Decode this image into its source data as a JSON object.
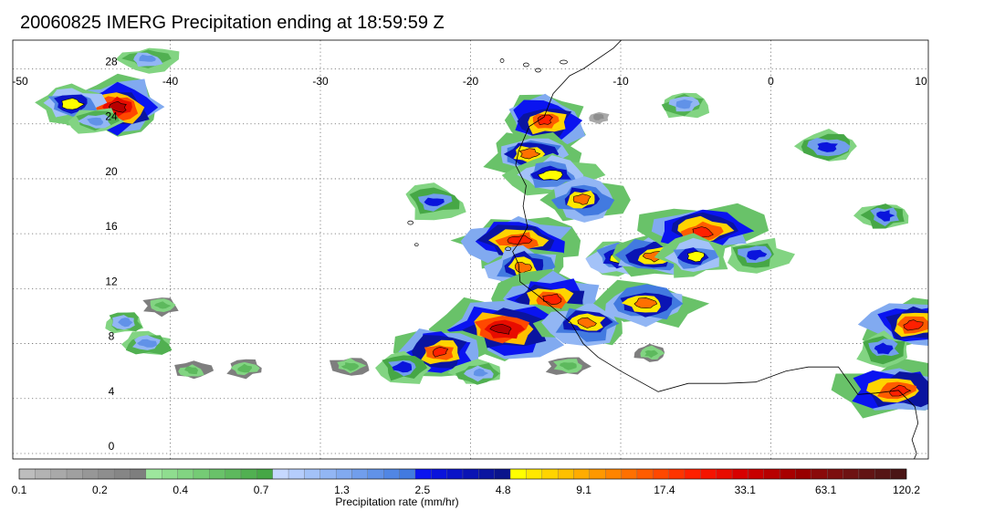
{
  "title": "20060825 IMERG Precipitation ending at 18:59:59 Z",
  "map": {
    "lon_range": [
      -50,
      10
    ],
    "lat_range": [
      -0.5,
      29
    ],
    "lon_ticks": [
      "-50",
      "-40",
      "-30",
      "-20",
      "-10",
      "0",
      "10"
    ],
    "lat_ticks": [
      "28",
      "24",
      "20",
      "16",
      "12",
      "8",
      "4",
      "0"
    ],
    "grid": "dotted",
    "coastline_color": "#000000"
  },
  "colorbar": {
    "title": "Precipitation rate (mm/hr)",
    "tick_labels": [
      "0.1",
      "0.2",
      "0.4",
      "0.7",
      "1.3",
      "2.5",
      "4.8",
      "9.1",
      "17.4",
      "33.1",
      "63.1",
      "120.2"
    ],
    "colors": [
      "#bdbdbd",
      "#b3b3b3",
      "#a9a9a9",
      "#a0a0a0",
      "#979797",
      "#8e8e8e",
      "#868686",
      "#7e7e7e",
      "#9de79d",
      "#8fdd8f",
      "#82d482",
      "#75cb75",
      "#69c269",
      "#5db95d",
      "#51b051",
      "#46a746",
      "#c6d8ff",
      "#b5cdfc",
      "#a3c2f8",
      "#92b6f4",
      "#81aaf0",
      "#719eec",
      "#6192e8",
      "#5186e4",
      "#427ae0",
      "#0a14f0",
      "#0a14dc",
      "#0a14c8",
      "#0a14b4",
      "#0a14a0",
      "#0a148c",
      "#ffff00",
      "#ffe800",
      "#ffd400",
      "#ffc000",
      "#ffac00",
      "#ff9800",
      "#ff8400",
      "#ff7000",
      "#ff5c00",
      "#ff4800",
      "#ff3400",
      "#ff2000",
      "#f51400",
      "#e80c00",
      "#d80000",
      "#c80000",
      "#b80000",
      "#a80000",
      "#980000",
      "#8a0a0a",
      "#7c0f0f",
      "#6e1212",
      "#621414",
      "#561515",
      "#4a1515"
    ]
  },
  "precip_clusters": [
    {
      "lon": -43.5,
      "lat": 25.2,
      "level": 7
    },
    {
      "lon": -46.5,
      "lat": 25.5,
      "level": 4
    },
    {
      "lon": -41.5,
      "lat": 28.7,
      "level": 2
    },
    {
      "lon": -15.1,
      "lat": 24.2,
      "level": 6
    },
    {
      "lon": -16.0,
      "lat": 21.8,
      "level": 5
    },
    {
      "lon": -14.6,
      "lat": 20.3,
      "level": 4
    },
    {
      "lon": -12.5,
      "lat": 18.5,
      "level": 5
    },
    {
      "lon": -22.5,
      "lat": 18.3,
      "level": 3
    },
    {
      "lon": -16.8,
      "lat": 15.5,
      "level": 6
    },
    {
      "lon": -16.5,
      "lat": 13.6,
      "level": 5
    },
    {
      "lon": -14.6,
      "lat": 11.2,
      "level": 6
    },
    {
      "lon": -17.8,
      "lat": 9.0,
      "level": 7
    },
    {
      "lon": -22.0,
      "lat": 7.4,
      "level": 6
    },
    {
      "lon": -12.2,
      "lat": 9.5,
      "level": 5
    },
    {
      "lon": -8.3,
      "lat": 10.9,
      "level": 5
    },
    {
      "lon": -10.2,
      "lat": 14.2,
      "level": 4
    },
    {
      "lon": -7.8,
      "lat": 14.4,
      "level": 5
    },
    {
      "lon": -4.6,
      "lat": 16.2,
      "level": 6
    },
    {
      "lon": -5.1,
      "lat": 14.3,
      "level": 4
    },
    {
      "lon": -1.0,
      "lat": 14.5,
      "level": 3
    },
    {
      "lon": 3.8,
      "lat": 22.4,
      "level": 3
    },
    {
      "lon": 7.6,
      "lat": 17.3,
      "level": 3
    },
    {
      "lon": 9.5,
      "lat": 9.4,
      "level": 6
    },
    {
      "lon": 8.5,
      "lat": 4.6,
      "level": 6
    },
    {
      "lon": 7.5,
      "lat": 7.6,
      "level": 3
    },
    {
      "lon": -35.0,
      "lat": 6.2,
      "level": 1
    },
    {
      "lon": -28.0,
      "lat": 6.4,
      "level": 1
    },
    {
      "lon": -24.5,
      "lat": 6.3,
      "level": 3
    },
    {
      "lon": -19.5,
      "lat": 5.8,
      "level": 2
    },
    {
      "lon": -13.5,
      "lat": 6.4,
      "level": 1
    },
    {
      "lon": -8.0,
      "lat": 7.3,
      "level": 1
    },
    {
      "lon": -40.5,
      "lat": 10.8,
      "level": 1
    },
    {
      "lon": -41.5,
      "lat": 8.0,
      "level": 2
    },
    {
      "lon": -43.0,
      "lat": 9.6,
      "level": 2
    },
    {
      "lon": -38.5,
      "lat": 6.0,
      "level": 1
    },
    {
      "lon": -45.0,
      "lat": 24.2,
      "level": 2
    },
    {
      "lon": -11.5,
      "lat": 24.5,
      "level": 0
    },
    {
      "lon": -5.8,
      "lat": 25.4,
      "level": 2
    }
  ]
}
